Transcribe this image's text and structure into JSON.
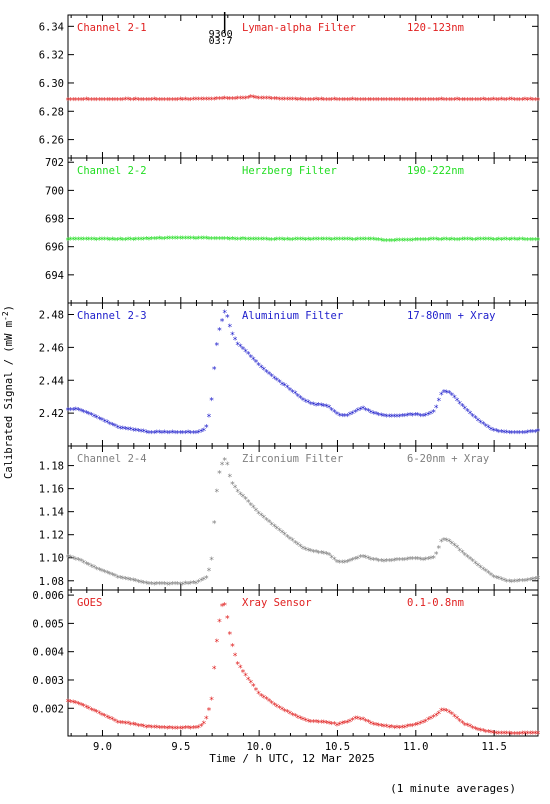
{
  "figure": {
    "ylabel": "Calibrated Signal / (mW m",
    "ylabel_sup": "-2",
    "ylabel_end": ")",
    "xlabel": "Time / h UTC, 12 Mar 2025",
    "footnote": "(1 minute averages)",
    "marker_label_top": "9360",
    "marker_label_bottom": "03:7",
    "marker_x": 9.78,
    "xlim": [
      8.78,
      11.78
    ],
    "xticks": [
      9.0,
      9.5,
      10.0,
      10.5,
      11.0,
      11.5
    ],
    "xtick_labels": [
      "9.0",
      "9.5",
      "10.0",
      "10.5",
      "11.0",
      "11.5"
    ]
  },
  "chart_data": [
    {
      "type": "scatter",
      "channel": "Channel 2-1",
      "filter": "Lyman-alpha Filter",
      "band": "120-123nm",
      "color": "#e02020",
      "ylim": [
        6.247,
        6.348
      ],
      "yticks": [
        6.26,
        6.28,
        6.3,
        6.32,
        6.34
      ],
      "ytick_labels": [
        "6.26",
        "6.28",
        "6.30",
        "6.32",
        "6.34"
      ],
      "x": [
        8.78,
        9.5,
        9.9,
        9.95,
        10.0,
        10.3,
        10.7,
        11.78
      ],
      "y": [
        6.288,
        6.288,
        6.289,
        6.29,
        6.289,
        6.288,
        6.288,
        6.288
      ]
    },
    {
      "type": "scatter",
      "channel": "Channel 2-2",
      "filter": "Herzberg Filter",
      "band": "190-222nm",
      "color": "#22dd22",
      "ylim": [
        692.0,
        702.3
      ],
      "yticks": [
        694,
        696,
        698,
        700,
        702
      ],
      "ytick_labels": [
        "694",
        "696",
        "698",
        "700",
        "702"
      ],
      "x": [
        8.78,
        9.2,
        9.5,
        10.0,
        10.5,
        10.75,
        10.8,
        11.1,
        11.5,
        11.78
      ],
      "y": [
        696.5,
        696.5,
        696.6,
        696.5,
        696.5,
        696.5,
        696.4,
        696.5,
        696.5,
        696.5
      ]
    },
    {
      "type": "scatter",
      "channel": "Channel 2-3",
      "filter": "Aluminium Filter",
      "band": "17-80nm + Xray",
      "color": "#2020cc",
      "ylim": [
        2.4,
        2.487
      ],
      "yticks": [
        2.42,
        2.44,
        2.46,
        2.48
      ],
      "ytick_labels": [
        "2.42",
        "2.44",
        "2.46",
        "2.48"
      ],
      "x": [
        8.78,
        8.85,
        8.95,
        9.1,
        9.3,
        9.5,
        9.6,
        9.64,
        9.67,
        9.7,
        9.72,
        9.74,
        9.76,
        9.78,
        9.8,
        9.82,
        9.86,
        9.92,
        10.0,
        10.1,
        10.2,
        10.28,
        10.32,
        10.36,
        10.44,
        10.5,
        10.56,
        10.62,
        10.66,
        10.72,
        10.8,
        10.9,
        11.0,
        11.05,
        11.12,
        11.17,
        11.22,
        11.3,
        11.4,
        11.5,
        11.6,
        11.7,
        11.78
      ],
      "y": [
        2.422,
        2.422,
        2.418,
        2.411,
        2.408,
        2.408,
        2.408,
        2.409,
        2.412,
        2.43,
        2.455,
        2.468,
        2.475,
        2.481,
        2.478,
        2.47,
        2.462,
        2.457,
        2.449,
        2.441,
        2.434,
        2.428,
        2.426,
        2.425,
        2.424,
        2.419,
        2.418,
        2.421,
        2.423,
        2.42,
        2.418,
        2.418,
        2.419,
        2.418,
        2.421,
        2.433,
        2.432,
        2.424,
        2.415,
        2.409,
        2.408,
        2.408,
        2.409
      ]
    },
    {
      "type": "scatter",
      "channel": "Channel 2-4",
      "filter": "Zirconium Filter",
      "band": "6-20nm + Xray",
      "color": "#7f7f7f",
      "ylim": [
        1.072,
        1.197
      ],
      "yticks": [
        1.08,
        1.1,
        1.12,
        1.14,
        1.16,
        1.18
      ],
      "ytick_labels": [
        "1.08",
        "1.10",
        "1.12",
        "1.14",
        "1.16",
        "1.18"
      ],
      "x": [
        8.78,
        8.85,
        8.95,
        9.1,
        9.3,
        9.5,
        9.6,
        9.64,
        9.67,
        9.7,
        9.72,
        9.74,
        9.76,
        9.78,
        9.8,
        9.82,
        9.86,
        9.92,
        10.0,
        10.1,
        10.2,
        10.28,
        10.32,
        10.36,
        10.44,
        10.5,
        10.56,
        10.62,
        10.66,
        10.72,
        10.8,
        10.9,
        11.0,
        11.05,
        11.12,
        11.17,
        11.22,
        11.3,
        11.4,
        11.5,
        11.6,
        11.7,
        11.78
      ],
      "y": [
        1.101,
        1.098,
        1.091,
        1.083,
        1.077,
        1.077,
        1.078,
        1.081,
        1.083,
        1.1,
        1.145,
        1.17,
        1.18,
        1.185,
        1.18,
        1.166,
        1.158,
        1.15,
        1.138,
        1.127,
        1.116,
        1.108,
        1.106,
        1.105,
        1.103,
        1.096,
        1.096,
        1.099,
        1.101,
        1.098,
        1.097,
        1.098,
        1.099,
        1.098,
        1.1,
        1.116,
        1.114,
        1.104,
        1.093,
        1.083,
        1.079,
        1.08,
        1.082
      ]
    },
    {
      "type": "scatter",
      "channel": "GOES",
      "filter": "Xray Sensor",
      "band": "0.1-0.8nm",
      "color": "#e02020",
      "ylim": [
        0.00102,
        0.00618
      ],
      "yticks": [
        0.002,
        0.003,
        0.004,
        0.005,
        0.006
      ],
      "ytick_labels": [
        "0.002",
        "0.003",
        "0.004",
        "0.005",
        "0.006"
      ],
      "x": [
        8.78,
        8.85,
        8.95,
        9.1,
        9.3,
        9.5,
        9.6,
        9.64,
        9.67,
        9.7,
        9.72,
        9.74,
        9.76,
        9.78,
        9.8,
        9.82,
        9.86,
        9.92,
        10.0,
        10.1,
        10.2,
        10.28,
        10.32,
        10.36,
        10.44,
        10.5,
        10.56,
        10.62,
        10.66,
        10.72,
        10.8,
        10.9,
        11.0,
        11.05,
        11.12,
        11.17,
        11.22,
        11.3,
        11.4,
        11.5,
        11.6,
        11.7,
        11.78
      ],
      "y": [
        0.00225,
        0.00215,
        0.0019,
        0.0015,
        0.00132,
        0.00128,
        0.0013,
        0.0014,
        0.0017,
        0.0024,
        0.0039,
        0.0048,
        0.0056,
        0.00565,
        0.0051,
        0.0044,
        0.0036,
        0.0031,
        0.0025,
        0.0021,
        0.0018,
        0.0016,
        0.00152,
        0.0015,
        0.00148,
        0.0014,
        0.0015,
        0.00165,
        0.0016,
        0.00145,
        0.00135,
        0.0013,
        0.0014,
        0.0015,
        0.0017,
        0.00195,
        0.00185,
        0.00145,
        0.00122,
        0.00112,
        0.0011,
        0.0011,
        0.00112
      ]
    }
  ]
}
